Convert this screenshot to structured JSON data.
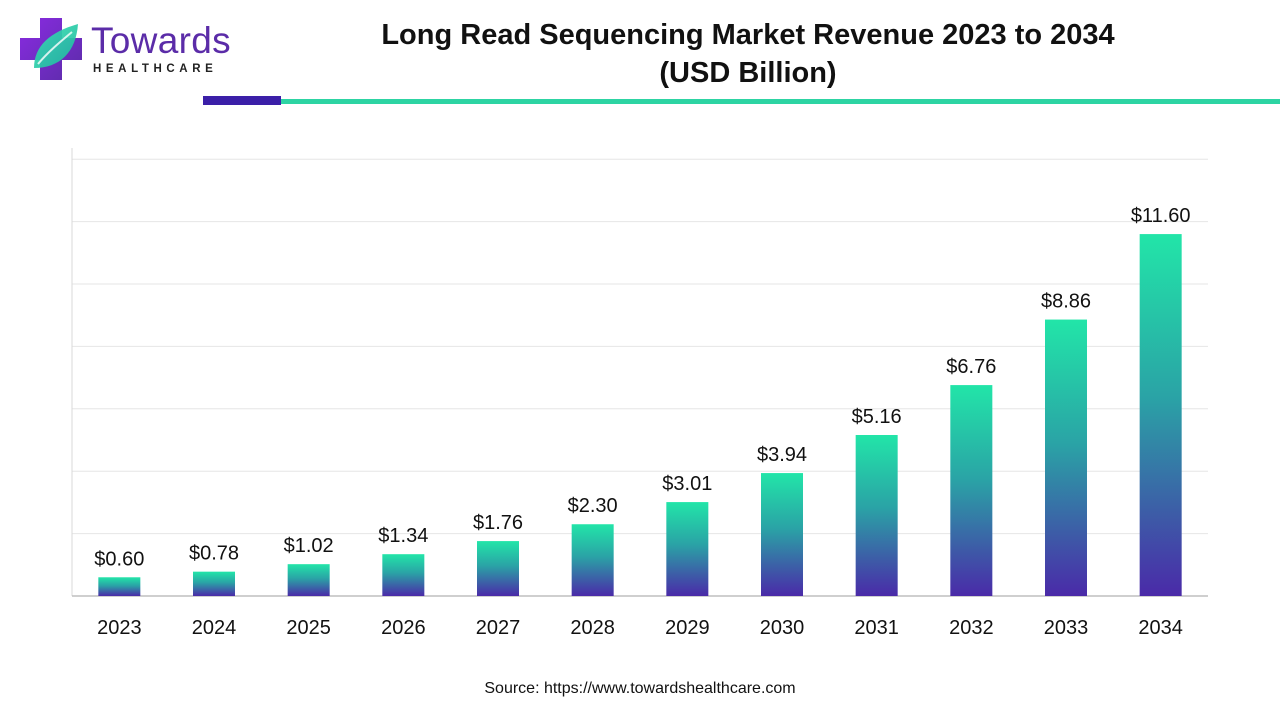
{
  "brand": {
    "logo_name": "Towards",
    "logo_sub": "HEALTHCARE",
    "colors": {
      "purple": "#5b2ca8",
      "bar_top": "#22e5a8",
      "bar_bottom": "#4a2aa8",
      "accent_dark": "#3b1fa8",
      "accent_teal": "#2dd4a3"
    }
  },
  "header": {
    "title_line1": "Long Read Sequencing Market Revenue 2023 to 2034",
    "title_line2": "(USD Billion)"
  },
  "footer": {
    "source": "Source: https://www.towardshealthcare.com"
  },
  "chart_data": {
    "type": "bar",
    "title": "Long Read Sequencing Market Revenue 2023 to 2034 (USD Billion)",
    "categories": [
      "2023",
      "2024",
      "2025",
      "2026",
      "2027",
      "2028",
      "2029",
      "2030",
      "2031",
      "2032",
      "2033",
      "2034"
    ],
    "values": [
      0.6,
      0.78,
      1.02,
      1.34,
      1.76,
      2.3,
      3.01,
      3.94,
      5.16,
      6.76,
      8.86,
      11.6
    ],
    "data_labels": [
      "$0.60",
      "$0.78",
      "$1.02",
      "$1.34",
      "$1.76",
      "$2.30",
      "$3.01",
      "$3.94",
      "$5.16",
      "$6.76",
      "$8.86",
      "$11.60"
    ],
    "ylim": [
      0,
      14
    ],
    "grid": true,
    "legend": "none",
    "xlabel": "",
    "ylabel": ""
  }
}
